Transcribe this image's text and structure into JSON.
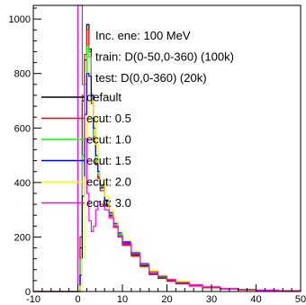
{
  "chart_data": {
    "type": "line",
    "style": "histogram",
    "title": "",
    "xlabel": "",
    "ylabel": "",
    "xlim": [
      -10,
      50
    ],
    "ylim": [
      0,
      1050
    ],
    "x_ticks": [
      -10,
      0,
      10,
      20,
      30,
      40,
      50
    ],
    "y_ticks": [
      0,
      200,
      400,
      600,
      800,
      1000
    ],
    "legend_placement": "top-right",
    "legend_header": [
      "Inc. ene: 100 MeV",
      "train: D(0-50,0-360) (100k)",
      "test: D(0,0-360) (20k)"
    ],
    "x": [
      -10,
      -8,
      -6,
      -4,
      -2,
      0,
      0.5,
      1,
      1.5,
      2,
      2.5,
      3,
      3.5,
      4,
      4.5,
      5,
      6,
      7,
      8,
      9,
      10,
      12,
      14,
      16,
      18,
      20,
      22,
      25,
      28,
      32,
      36,
      40,
      45,
      50
    ],
    "series": [
      {
        "name": "default",
        "color": "#000000",
        "values": [
          0,
          0,
          0,
          0,
          0,
          0,
          160,
          700,
          850,
          980,
          890,
          700,
          560,
          470,
          420,
          380,
          320,
          280,
          240,
          205,
          175,
          135,
          95,
          65,
          50,
          40,
          30,
          22,
          15,
          10,
          7,
          5,
          3,
          2
        ]
      },
      {
        "name": "ecut: 0.5",
        "color": "#ff0000",
        "values": [
          0,
          0,
          0,
          0,
          0,
          0,
          200,
          720,
          870,
          960,
          880,
          690,
          550,
          465,
          415,
          370,
          315,
          275,
          235,
          200,
          170,
          130,
          92,
          62,
          48,
          38,
          28,
          20,
          14,
          9,
          6,
          4,
          3,
          1
        ]
      },
      {
        "name": "ecut: 1.0",
        "color": "#00ff00",
        "values": [
          0,
          0,
          0,
          0,
          0,
          0,
          120,
          500,
          760,
          900,
          860,
          700,
          570,
          480,
          430,
          385,
          330,
          285,
          245,
          210,
          180,
          140,
          100,
          70,
          54,
          43,
          33,
          24,
          17,
          11,
          8,
          5,
          3,
          2
        ]
      },
      {
        "name": "ecut: 1.5",
        "color": "#0000ff",
        "values": [
          0,
          0,
          0,
          0,
          0,
          0,
          60,
          350,
          650,
          800,
          790,
          720,
          600,
          500,
          440,
          390,
          335,
          290,
          250,
          215,
          182,
          142,
          102,
          72,
          56,
          44,
          34,
          25,
          18,
          12,
          8,
          5,
          3,
          2
        ]
      },
      {
        "name": "ecut: 2.0",
        "color": "#ffff00",
        "values": [
          0,
          0,
          0,
          0,
          0,
          0,
          20,
          120,
          420,
          620,
          700,
          700,
          640,
          540,
          470,
          410,
          350,
          300,
          258,
          220,
          188,
          148,
          108,
          78,
          60,
          48,
          37,
          27,
          19,
          13,
          9,
          6,
          4,
          2
        ]
      },
      {
        "name": "ecut: 3.0",
        "color": "#ff00ff",
        "values": [
          0,
          0,
          0,
          0,
          0,
          1050,
          1050,
          760,
          560,
          360,
          260,
          220,
          240,
          300,
          330,
          320,
          300,
          270,
          240,
          205,
          178,
          140,
          100,
          72,
          55,
          43,
          33,
          24,
          17,
          11,
          8,
          5,
          3,
          2
        ]
      }
    ]
  }
}
